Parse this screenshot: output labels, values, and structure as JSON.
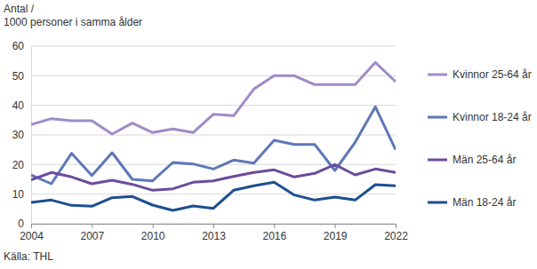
{
  "chart_data": {
    "type": "line",
    "ylabel": [
      "Antal /",
      "1000 personer i samma ålder"
    ],
    "source": "Källa: THL",
    "x": [
      2004,
      2005,
      2006,
      2007,
      2008,
      2009,
      2010,
      2011,
      2012,
      2013,
      2014,
      2015,
      2016,
      2017,
      2018,
      2019,
      2020,
      2021,
      2022
    ],
    "xlim": [
      2004,
      2022
    ],
    "xticks": [
      2004,
      2007,
      2010,
      2013,
      2016,
      2019,
      2022
    ],
    "ylim": [
      0,
      60
    ],
    "yticks": [
      0,
      10,
      20,
      30,
      40,
      50,
      60
    ],
    "grid": true,
    "legend": "right",
    "series": [
      {
        "name": "Kvinnor 25-64 år",
        "color": "#9d8cc8",
        "values": [
          33.5,
          35.5,
          34.8,
          34.8,
          30.3,
          34.0,
          30.8,
          32.0,
          30.8,
          37.0,
          36.5,
          45.5,
          50.0,
          50.0,
          47.0,
          47.0,
          47.0,
          54.5,
          48.0
        ]
      },
      {
        "name": "Kvinnor 18-24 år",
        "color": "#5e77b8",
        "values": [
          16.5,
          13.5,
          23.8,
          16.3,
          24.0,
          15.0,
          14.5,
          20.7,
          20.2,
          18.5,
          21.5,
          20.5,
          28.2,
          26.8,
          26.8,
          18.0,
          27.5,
          39.5,
          25.0
        ]
      },
      {
        "name": "Män 25-64 år",
        "color": "#6a4c9c",
        "values": [
          14.8,
          17.3,
          15.8,
          13.5,
          14.7,
          13.3,
          11.3,
          11.8,
          14.0,
          14.5,
          16.0,
          17.3,
          18.2,
          15.8,
          17.0,
          20.0,
          16.5,
          18.5,
          17.3
        ]
      },
      {
        "name": "Män 18-24 år",
        "color": "#1d4f91",
        "values": [
          7.2,
          8.0,
          6.2,
          5.9,
          8.8,
          9.2,
          6.3,
          4.5,
          6.0,
          5.2,
          11.3,
          12.8,
          14.0,
          9.7,
          8.0,
          9.0,
          8.0,
          13.2,
          12.8
        ]
      }
    ]
  }
}
